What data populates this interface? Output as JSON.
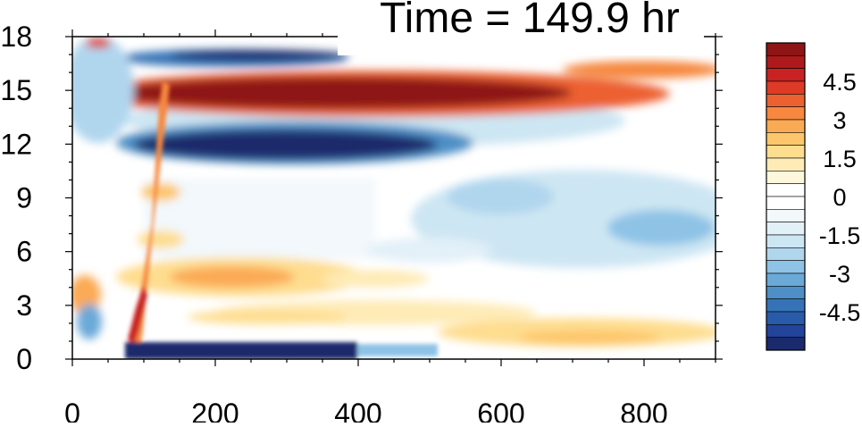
{
  "chart_data": {
    "type": "heatmap",
    "title": "Time = 149.9 hr",
    "xlabel": "",
    "ylabel": "",
    "xlim": [
      0,
      900
    ],
    "ylim": [
      0,
      18
    ],
    "x_ticks": [
      0,
      200,
      400,
      600,
      800
    ],
    "x_tick_labels": [
      "0",
      "200",
      "400",
      "600",
      "800"
    ],
    "y_ticks": [
      0,
      3,
      6,
      9,
      12,
      15,
      18
    ],
    "y_tick_labels": [
      "0",
      "3",
      "6",
      "9",
      "12",
      "15",
      "18"
    ],
    "colorbar": {
      "placement": "right",
      "range": [
        -6,
        6
      ],
      "step": 0.5,
      "labels": [
        "4.5",
        "3",
        "1.5",
        "0",
        "-1.5",
        "-3",
        "-4.5"
      ],
      "label_values": [
        4.5,
        3,
        1.5,
        0,
        -1.5,
        -3,
        -4.5
      ],
      "colors": [
        "#1a2a6c",
        "#22449a",
        "#2a5ba8",
        "#3573b6",
        "#4d8fc6",
        "#6aa9d8",
        "#8ec3e6",
        "#b0d6ee",
        "#cde6f3",
        "#e2f0f8",
        "#f2f8fc",
        "#ffffff",
        "#ffffff",
        "#fff7dc",
        "#feebb6",
        "#fedd8f",
        "#fdc66b",
        "#fbaa54",
        "#f6883f",
        "#ec6130",
        "#dd3b27",
        "#c82222",
        "#ae1a1b",
        "#8e1515"
      ]
    },
    "features": [
      {
        "name": "upper positive band",
        "x": [
          100,
          880
        ],
        "y": [
          13.8,
          16.2
        ],
        "value": 5.5
      },
      {
        "name": "narrow negative band near top",
        "x": [
          90,
          370
        ],
        "y": [
          16.2,
          17.6
        ],
        "value": -5
      },
      {
        "name": "negative band",
        "x": [
          100,
          560
        ],
        "y": [
          11.2,
          13.6
        ],
        "value": -5.5
      },
      {
        "name": "weak negative region",
        "x": [
          400,
          900
        ],
        "y": [
          6,
          10.5
        ],
        "value": -1.5
      },
      {
        "name": "positive layer",
        "x": [
          100,
          450
        ],
        "y": [
          3.5,
          5.5
        ],
        "value": 1.5
      },
      {
        "name": "near-surface positive layer",
        "x": [
          200,
          900
        ],
        "y": [
          0.5,
          2.8
        ],
        "value": 1.5
      },
      {
        "name": "surface negative strip",
        "x": [
          70,
          400
        ],
        "y": [
          0,
          0.8
        ],
        "value": -5
      },
      {
        "name": "front positive streak",
        "x": [
          70,
          100
        ],
        "y": [
          0,
          16
        ],
        "value": 5
      }
    ]
  }
}
